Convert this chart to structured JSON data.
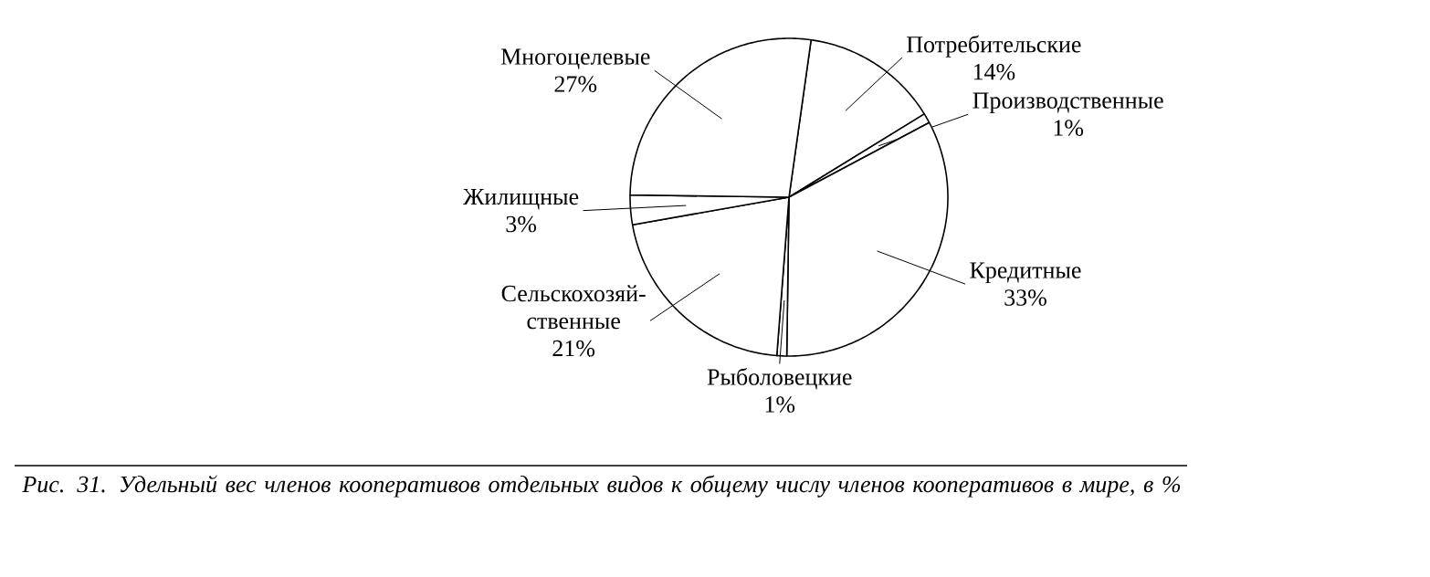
{
  "chart_data": {
    "type": "pie",
    "categories": [
      "Потребительские",
      "Производственные",
      "Кредитные",
      "Рыболовецкие",
      "Сельскохозяй-ственные",
      "Жилищные",
      "Многоцелевые"
    ],
    "values": [
      14,
      1,
      33,
      1,
      21,
      3,
      27
    ],
    "colors": [
      "#ffffff",
      "#ffffff",
      "#ffffff",
      "#ffffff",
      "#ffffff",
      "#ffffff",
      "#ffffff"
    ],
    "value_labels": [
      "14%",
      "1%",
      "33%",
      "1%",
      "21%",
      "3%",
      "27%"
    ],
    "annotations": [
      "*Рис. 31. Удельный вес членов кооперативов отдельных видов к общему числу членов кооперативов в мире, в %*"
    ]
  }
}
